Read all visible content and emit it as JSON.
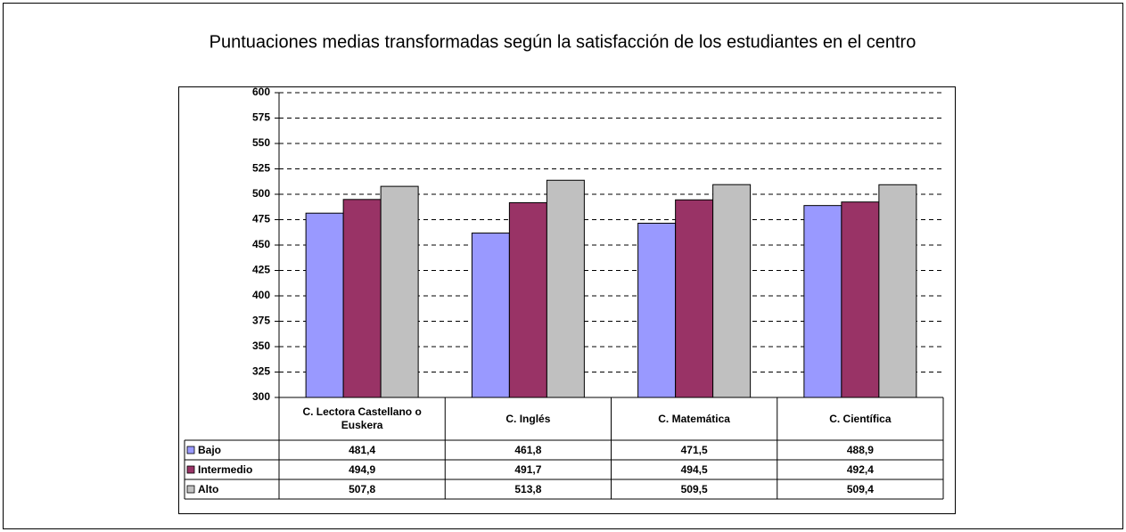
{
  "chart_data": {
    "type": "bar",
    "title": "Puntuaciones medias transformadas según la satisfacción de los estudiantes en el centro",
    "categories": [
      "C. Lectora Castellano o Euskera",
      "C. Inglés",
      "C. Matemática",
      "C. Científica"
    ],
    "series": [
      {
        "name": "Bajo",
        "color": "#9999ff",
        "values": [
          481.4,
          461.8,
          471.5,
          488.9
        ],
        "value_labels": [
          "481,4",
          "461,8",
          "471,5",
          "488,9"
        ]
      },
      {
        "name": "Intermedio",
        "color": "#993366",
        "values": [
          494.9,
          491.7,
          494.5,
          492.4
        ],
        "value_labels": [
          "494,9",
          "491,7",
          "494,5",
          "492,4"
        ]
      },
      {
        "name": "Alto",
        "color": "#c0c0c0",
        "values": [
          507.8,
          513.8,
          509.5,
          509.4
        ],
        "value_labels": [
          "507,8",
          "513,8",
          "509,5",
          "509,4"
        ]
      }
    ],
    "ylim": [
      300,
      600
    ],
    "yticks": [
      300,
      325,
      350,
      375,
      400,
      425,
      450,
      475,
      500,
      525,
      550,
      575,
      600
    ],
    "grid": true
  }
}
